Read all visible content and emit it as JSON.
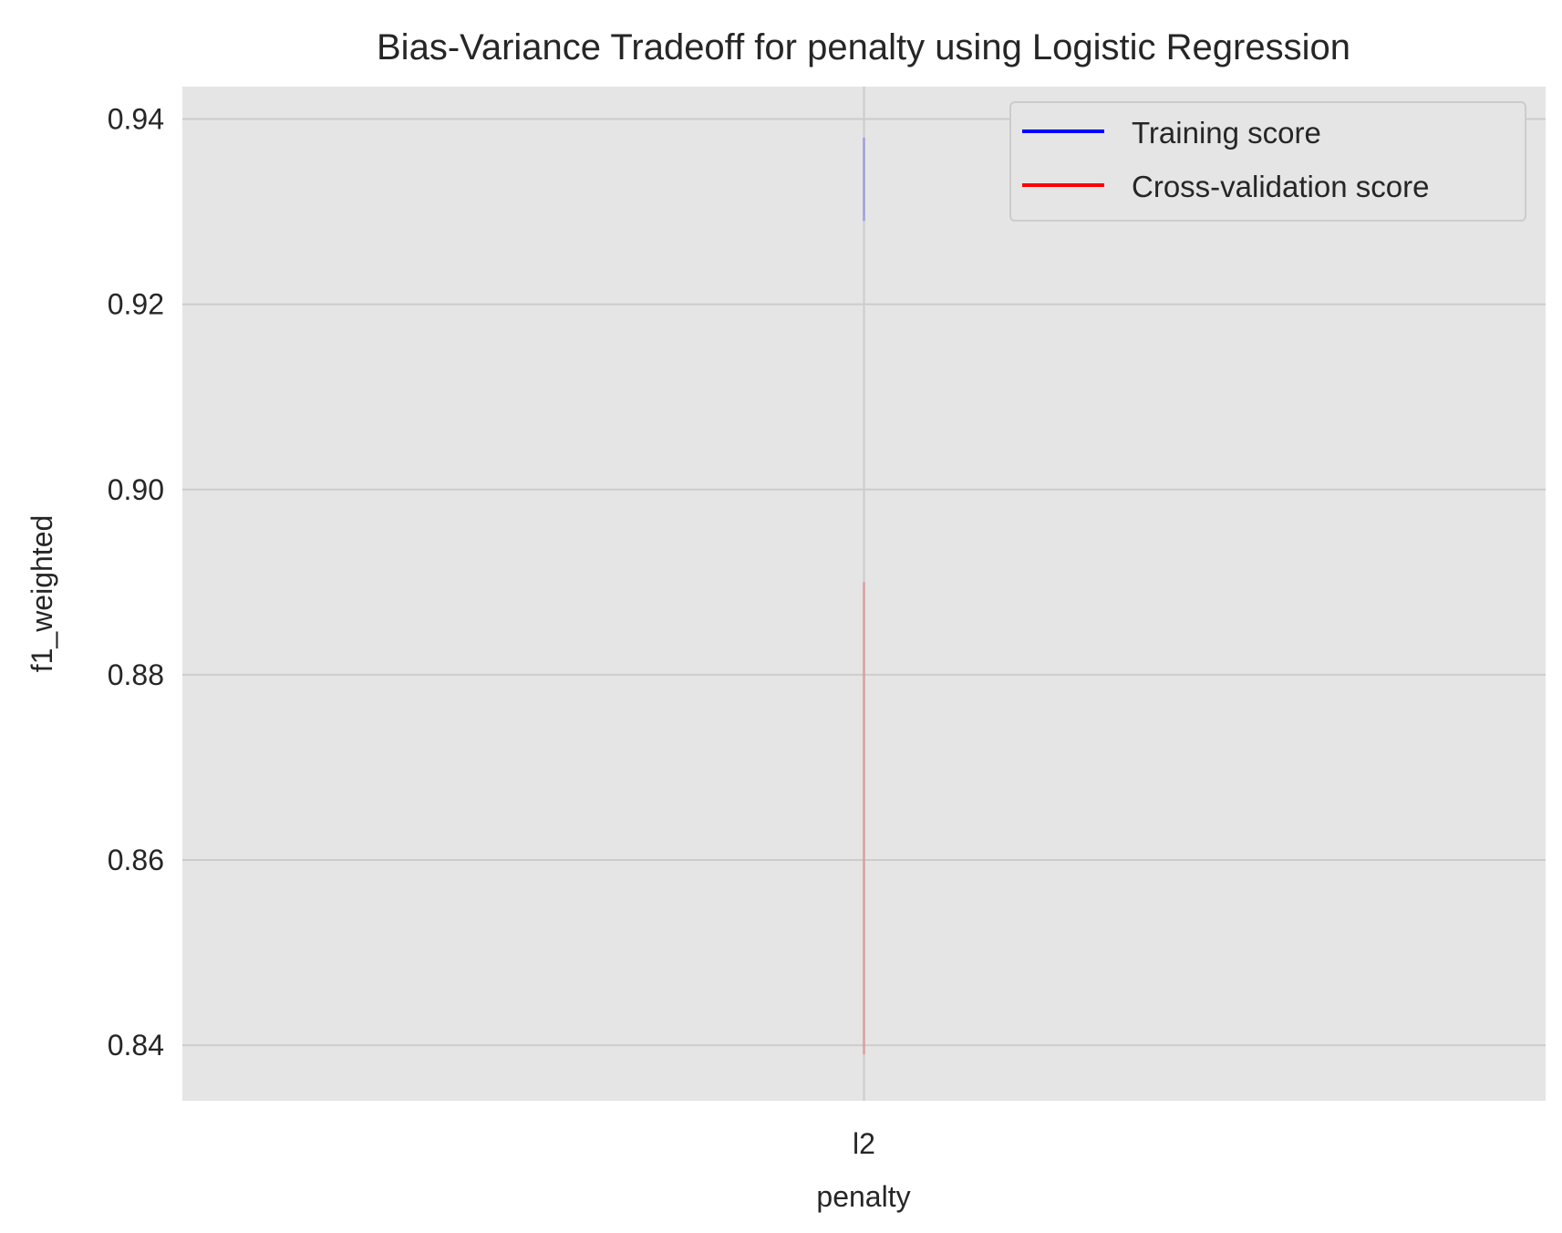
{
  "chart_data": {
    "type": "line",
    "title": "Bias-Variance Tradeoff for penalty using Logistic Regression",
    "xlabel": "penalty",
    "ylabel": "f1_weighted",
    "categories": [
      "l2"
    ],
    "ylim": [
      0.834,
      0.9435
    ],
    "yticks": [
      "0.84",
      "0.86",
      "0.88",
      "0.90",
      "0.92",
      "0.94"
    ],
    "grid": true,
    "background": "#e5e5e5",
    "gridColor": "#cccccc",
    "legend": {
      "position": "top-right"
    },
    "series": [
      {
        "name": "Training score",
        "color": "#0000ff",
        "values": [
          0.9335
        ],
        "band": [
          [
            0.929,
            0.938
          ]
        ]
      },
      {
        "name": "Cross-validation score",
        "color": "#ff0000",
        "values": [
          0.8645
        ],
        "band": [
          [
            0.839,
            0.89
          ]
        ]
      }
    ]
  }
}
